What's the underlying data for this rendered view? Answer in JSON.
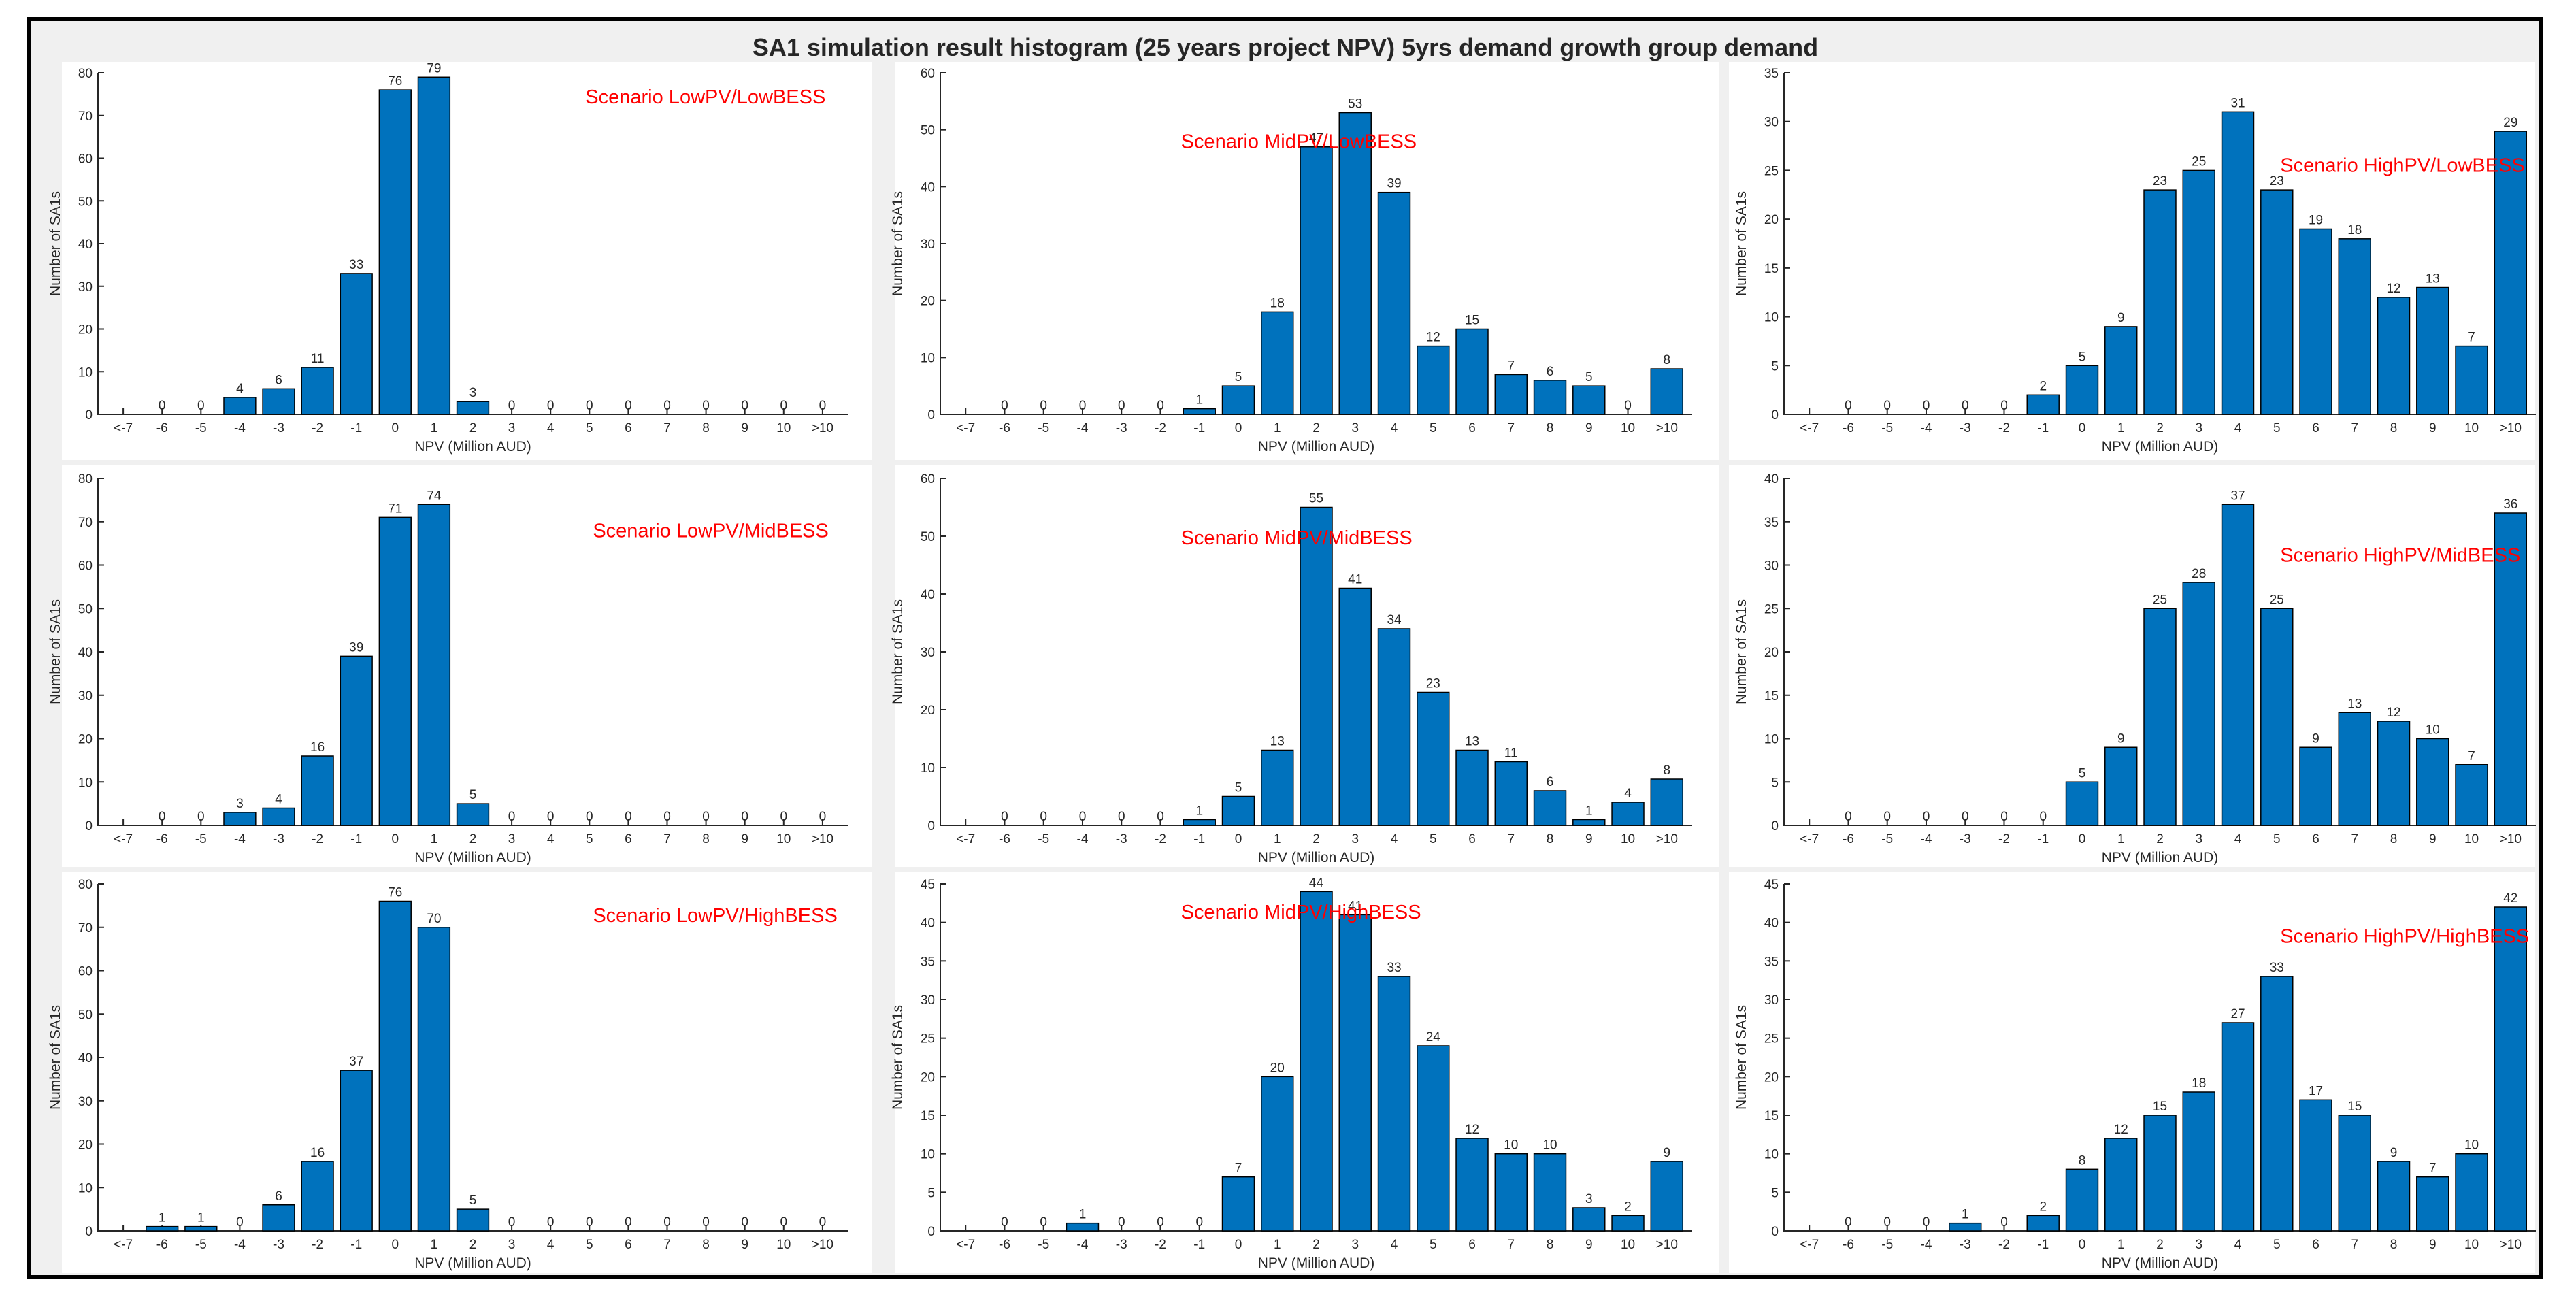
{
  "figure": {
    "title": "SA1 simulation result histogram (25 years project NPV) 5yrs demand growth group demand",
    "bar_color": "#0072bd",
    "scenario_color": "#ff0000"
  },
  "chart_data": [
    {
      "type": "bar",
      "annotation": "Scenario LowPV/LowBESS",
      "xlabel": "NPV (Million AUD)",
      "ylabel": "Number of SA1s",
      "categories": [
        "<-7",
        "-6",
        "-5",
        "-4",
        "-3",
        "-2",
        "-1",
        "0",
        "1",
        "2",
        "3",
        "4",
        "5",
        "6",
        "7",
        "8",
        "9",
        "10",
        ">10"
      ],
      "values": [
        0,
        0,
        0,
        4,
        6,
        11,
        33,
        76,
        79,
        3,
        0,
        0,
        0,
        0,
        0,
        0,
        0,
        0,
        0
      ],
      "data_labels": [
        "",
        "0",
        "0",
        "4",
        "6",
        "11",
        "33",
        "76",
        "79",
        "3",
        "0",
        "0",
        "0",
        "0",
        "0",
        "0",
        "0",
        "0",
        "0"
      ],
      "ylim": [
        0,
        80
      ],
      "yticks": [
        0,
        10,
        20,
        30,
        40,
        50,
        60,
        70,
        80
      ]
    },
    {
      "type": "bar",
      "annotation": "Scenario MidPV/LowBESS",
      "xlabel": "NPV (Million AUD)",
      "ylabel": "Number of SA1s",
      "categories": [
        "<-7",
        "-6",
        "-5",
        "-4",
        "-3",
        "-2",
        "-1",
        "0",
        "1",
        "2",
        "3",
        "4",
        "5",
        "6",
        "7",
        "8",
        "9",
        "10",
        ">10"
      ],
      "values": [
        0,
        0,
        0,
        0,
        0,
        0,
        1,
        5,
        18,
        47,
        53,
        39,
        12,
        15,
        7,
        6,
        5,
        0,
        8
      ],
      "data_labels": [
        "",
        "0",
        "0",
        "0",
        "0",
        "0",
        "1",
        "5",
        "18",
        "47",
        "53",
        "39",
        "12",
        "15",
        "7",
        "6",
        "5",
        "0",
        "8"
      ],
      "ylim": [
        0,
        60
      ],
      "yticks": [
        0,
        10,
        20,
        30,
        40,
        50,
        60
      ]
    },
    {
      "type": "bar",
      "annotation": "Scenario HighPV/LowBESS",
      "xlabel": "NPV (Million AUD)",
      "ylabel": "Number of SA1s",
      "categories": [
        "<-7",
        "-6",
        "-5",
        "-4",
        "-3",
        "-2",
        "-1",
        "0",
        "1",
        "2",
        "3",
        "4",
        "5",
        "6",
        "7",
        "8",
        "9",
        "10",
        ">10"
      ],
      "values": [
        0,
        0,
        0,
        0,
        0,
        0,
        2,
        5,
        9,
        23,
        25,
        31,
        23,
        19,
        18,
        12,
        13,
        7,
        29
      ],
      "data_labels": [
        "",
        "0",
        "0",
        "0",
        "0",
        "0",
        "2",
        "5",
        "9",
        "23",
        "25",
        "31",
        "23",
        "19",
        "18",
        "12",
        "13",
        "7",
        "29"
      ],
      "ylim": [
        0,
        35
      ],
      "yticks": [
        0,
        5,
        10,
        15,
        20,
        25,
        30,
        35
      ]
    },
    {
      "type": "bar",
      "annotation": "Scenario LowPV/MidBESS",
      "xlabel": "NPV (Million AUD)",
      "ylabel": "Number of SA1s",
      "categories": [
        "<-7",
        "-6",
        "-5",
        "-4",
        "-3",
        "-2",
        "-1",
        "0",
        "1",
        "2",
        "3",
        "4",
        "5",
        "6",
        "7",
        "8",
        "9",
        "10",
        ">10"
      ],
      "values": [
        0,
        0,
        0,
        3,
        4,
        16,
        39,
        71,
        74,
        5,
        0,
        0,
        0,
        0,
        0,
        0,
        0,
        0,
        0
      ],
      "data_labels": [
        "",
        "0",
        "0",
        "3",
        "4",
        "16",
        "39",
        "71",
        "74",
        "5",
        "0",
        "0",
        "0",
        "0",
        "0",
        "0",
        "0",
        "0",
        "0"
      ],
      "ylim": [
        0,
        80
      ],
      "yticks": [
        0,
        10,
        20,
        30,
        40,
        50,
        60,
        70,
        80
      ]
    },
    {
      "type": "bar",
      "annotation": "Scenario MidPV/MidBESS",
      "xlabel": "NPV (Million AUD)",
      "ylabel": "Number of SA1s",
      "categories": [
        "<-7",
        "-6",
        "-5",
        "-4",
        "-3",
        "-2",
        "-1",
        "0",
        "1",
        "2",
        "3",
        "4",
        "5",
        "6",
        "7",
        "8",
        "9",
        "10",
        ">10"
      ],
      "values": [
        0,
        0,
        0,
        0,
        0,
        0,
        1,
        5,
        13,
        55,
        41,
        34,
        23,
        13,
        11,
        6,
        1,
        4,
        8
      ],
      "data_labels": [
        "",
        "0",
        "0",
        "0",
        "0",
        "0",
        "1",
        "5",
        "13",
        "55",
        "41",
        "34",
        "23",
        "13",
        "11",
        "6",
        "1",
        "4",
        "8"
      ],
      "ylim": [
        0,
        60
      ],
      "yticks": [
        0,
        10,
        20,
        30,
        40,
        50,
        60
      ]
    },
    {
      "type": "bar",
      "annotation": "Scenario HighPV/MidBESS",
      "xlabel": "NPV (Million AUD)",
      "ylabel": "Number of SA1s",
      "categories": [
        "<-7",
        "-6",
        "-5",
        "-4",
        "-3",
        "-2",
        "-1",
        "0",
        "1",
        "2",
        "3",
        "4",
        "5",
        "6",
        "7",
        "8",
        "9",
        "10",
        ">10"
      ],
      "values": [
        0,
        0,
        0,
        0,
        0,
        0,
        0,
        5,
        9,
        25,
        28,
        37,
        25,
        9,
        13,
        12,
        10,
        7,
        36
      ],
      "data_labels": [
        "",
        "0",
        "0",
        "0",
        "0",
        "0",
        "0",
        "5",
        "9",
        "25",
        "28",
        "37",
        "25",
        "9",
        "13",
        "12",
        "10",
        "7",
        "36"
      ],
      "ylim": [
        0,
        40
      ],
      "yticks": [
        0,
        5,
        10,
        15,
        20,
        25,
        30,
        35,
        40
      ]
    },
    {
      "type": "bar",
      "annotation": "Scenario LowPV/HighBESS",
      "xlabel": "NPV (Million AUD)",
      "ylabel": "Number of SA1s",
      "categories": [
        "<-7",
        "-6",
        "-5",
        "-4",
        "-3",
        "-2",
        "-1",
        "0",
        "1",
        "2",
        "3",
        "4",
        "5",
        "6",
        "7",
        "8",
        "9",
        "10",
        ">10"
      ],
      "values": [
        0,
        1,
        1,
        0,
        6,
        16,
        37,
        76,
        70,
        5,
        0,
        0,
        0,
        0,
        0,
        0,
        0,
        0,
        0
      ],
      "data_labels": [
        "",
        "1",
        "1",
        "0",
        "6",
        "16",
        "37",
        "76",
        "70",
        "5",
        "0",
        "0",
        "0",
        "0",
        "0",
        "0",
        "0",
        "0",
        "0"
      ],
      "ylim": [
        0,
        80
      ],
      "yticks": [
        0,
        10,
        20,
        30,
        40,
        50,
        60,
        70,
        80
      ]
    },
    {
      "type": "bar",
      "annotation": "Scenario MidPV/HighBESS",
      "xlabel": "NPV (Million AUD)",
      "ylabel": "Number of SA1s",
      "categories": [
        "<-7",
        "-6",
        "-5",
        "-4",
        "-3",
        "-2",
        "-1",
        "0",
        "1",
        "2",
        "3",
        "4",
        "5",
        "6",
        "7",
        "8",
        "9",
        "10",
        ">10"
      ],
      "values": [
        0,
        0,
        0,
        1,
        0,
        0,
        0,
        7,
        20,
        44,
        41,
        33,
        24,
        12,
        10,
        10,
        3,
        2,
        9
      ],
      "data_labels": [
        "",
        "0",
        "0",
        "1",
        "0",
        "0",
        "0",
        "7",
        "20",
        "44",
        "41",
        "33",
        "24",
        "12",
        "10",
        "10",
        "3",
        "2",
        "9"
      ],
      "ylim": [
        0,
        45
      ],
      "yticks": [
        0,
        5,
        10,
        15,
        20,
        25,
        30,
        35,
        40,
        45
      ]
    },
    {
      "type": "bar",
      "annotation": "Scenario HighPV/HighBESS",
      "xlabel": "NPV (Million AUD)",
      "ylabel": "Number of SA1s",
      "categories": [
        "<-7",
        "-6",
        "-5",
        "-4",
        "-3",
        "-2",
        "-1",
        "0",
        "1",
        "2",
        "3",
        "4",
        "5",
        "6",
        "7",
        "8",
        "9",
        "10",
        ">10"
      ],
      "values": [
        0,
        0,
        0,
        0,
        1,
        0,
        2,
        8,
        12,
        15,
        18,
        27,
        33,
        17,
        15,
        9,
        7,
        10,
        42
      ],
      "data_labels": [
        "",
        "0",
        "0",
        "0",
        "1",
        "0",
        "2",
        "8",
        "12",
        "15",
        "18",
        "27",
        "33",
        "17",
        "15",
        "9",
        "7",
        "10",
        "42"
      ],
      "ylim": [
        0,
        45
      ],
      "yticks": [
        0,
        5,
        10,
        15,
        20,
        25,
        30,
        35,
        40,
        45
      ]
    }
  ]
}
